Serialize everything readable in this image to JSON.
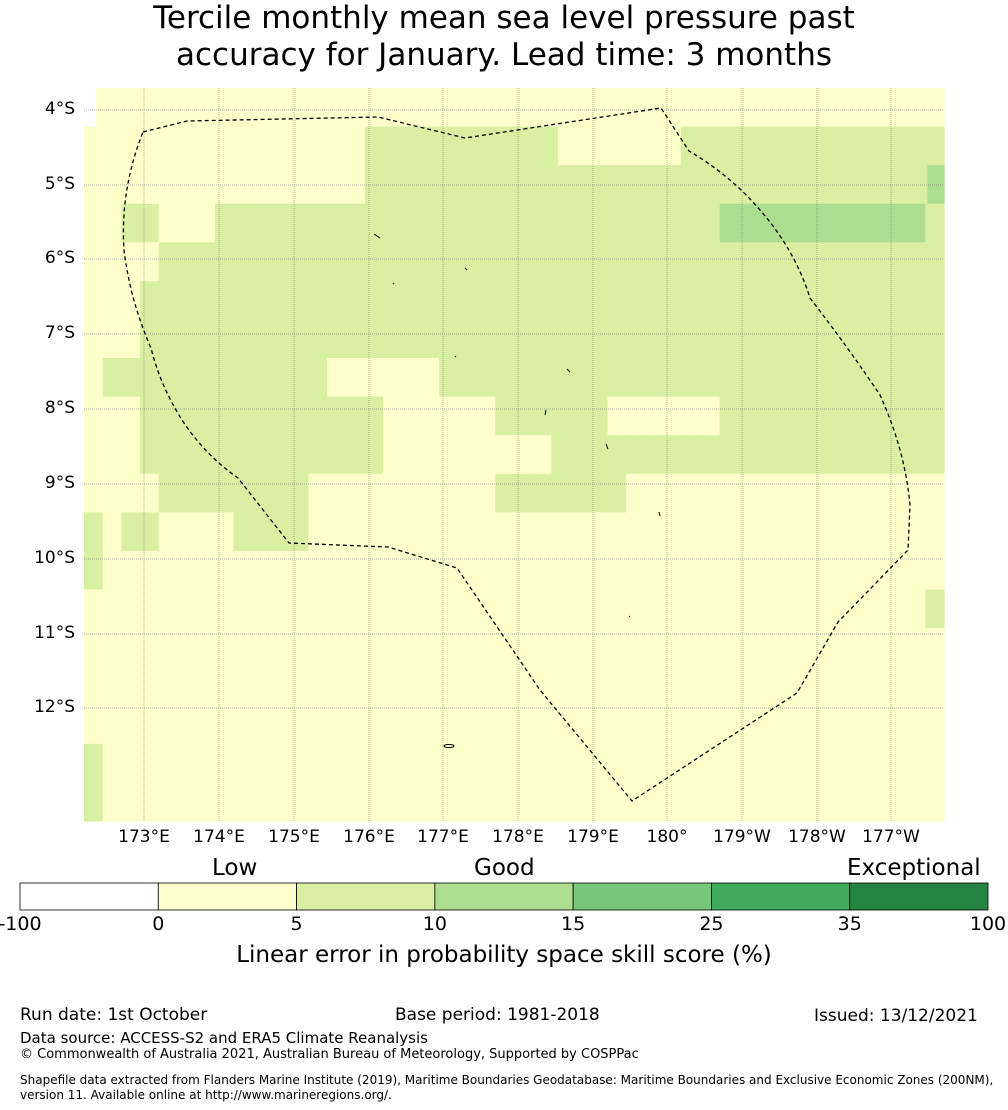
{
  "title": {
    "line1": "Tercile monthly mean sea level pressure past",
    "line2": "accuracy for January. Lead time: 3 months"
  },
  "map": {
    "lat_labels": [
      "4°S",
      "5°S",
      "6°S",
      "7°S",
      "8°S",
      "9°S",
      "10°S",
      "11°S",
      "12°S"
    ],
    "lon_labels": [
      "173°E",
      "174°E",
      "175°E",
      "176°E",
      "177°E",
      "178°E",
      "179°E",
      "180°",
      "179°W",
      "178°W",
      "177°W"
    ],
    "lon_range_deg_east": [
      172.2,
      183.7
    ],
    "lat_range_deg": [
      -3.7,
      -13.5
    ],
    "grid_cell_deg": [
      0.833,
      0.556
    ],
    "skill_bin_map_note": "0=white(<0), 1=0-5, 2=5-10, 3=10-15",
    "skill_grid_bins": [
      "0111111111111111111111111111111111111111111111111111111111111111111111111",
      "1111111111111111222222222221111111222222222222222",
      "1111111111111111122222222222222222222222222222222223",
      "1122111222222222222222222222222222333333333332",
      "1111222222222222222222222222222222222222222222",
      "1112222222222222222222222222222222222222222222",
      "1112222222222222222222222222222222222222222222",
      "1222222222222111111222222222222222222222222222",
      "1112222222222222111111222222111111222222222222",
      "1112222222222222111111111222222222222222222222",
      "1111222222221111111111222222211111111111111111",
      "2122111122221111111111111111111111111111111111",
      "2111111111111111111111111111111111111111111111",
      "1111111111111111111111111111111111111111111112",
      "1111111111111111111111111111111111111111111111",
      "1111111111111111111111111111111111111111111111",
      "1111111111111111111111111111111111111111111111",
      "2111111111111111111111111111111111111111111111",
      "2111111111111111111111111111111111111111111111"
    ]
  },
  "colorbar": {
    "categories": [
      "Low",
      "Good",
      "Exceptional"
    ],
    "ticks": [
      "-100",
      "0",
      "5",
      "10",
      "15",
      "25",
      "35",
      "100"
    ],
    "colors": [
      "#ffffff",
      "#ffffcc",
      "#d9f0a3",
      "#addd8e",
      "#78c679",
      "#41ab5d",
      "#238443"
    ],
    "label": "Linear error in probability space skill score (%)"
  },
  "footer": {
    "run_date": "Run date: 1st October",
    "base_period": "Base period: 1981-2018",
    "issued": "Issued: 13/12/2021",
    "data_source": "Data source: ACCESS-S2 and ERA5 Climate Reanalysis",
    "copyright": "© Commonwealth of Australia 2021, Australian Bureau of Meteorology, Supported by COSPPac",
    "shapefile_line1": "Shapefile data extracted from Flanders Marine Institute (2019), Maritime Boundaries Geodatabase: Maritime Boundaries and Exclusive Economic Zones (200NM),",
    "shapefile_line2": "version 11. Available online at http://www.marineregions.org/."
  }
}
